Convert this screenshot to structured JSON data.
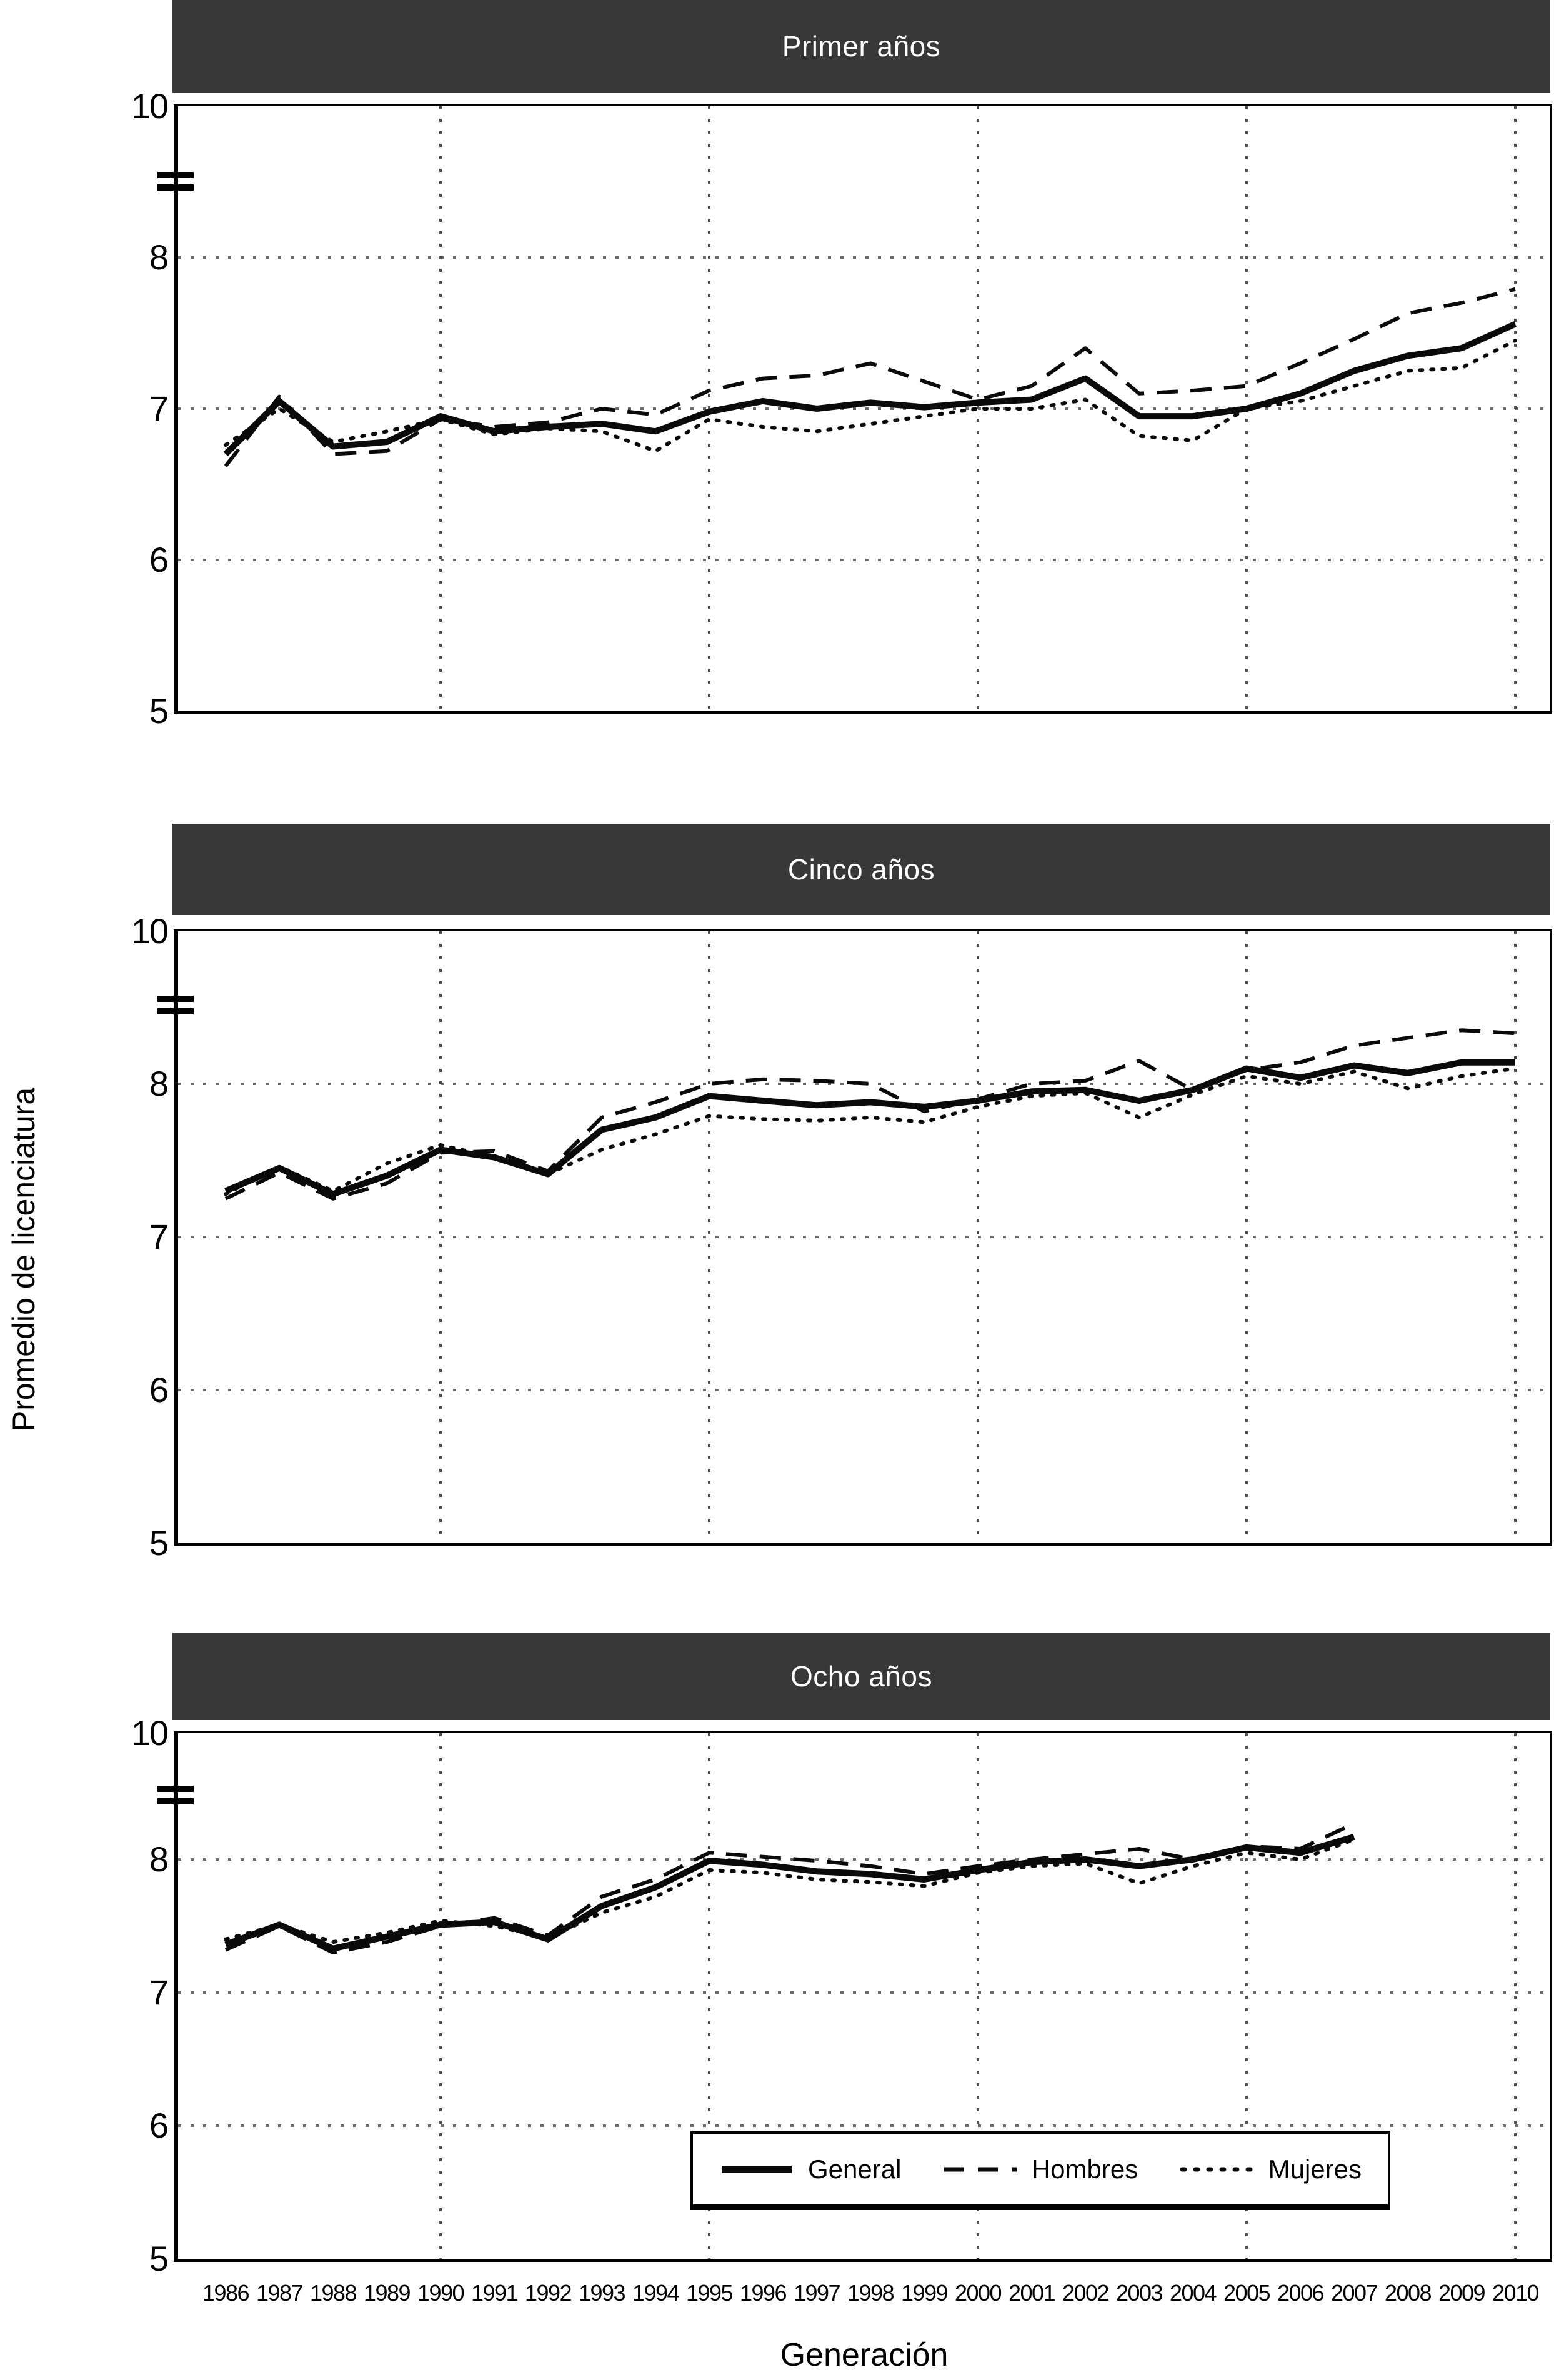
{
  "figure": {
    "ylabel": "Promedio de licenciatura",
    "xlabel": "Generación"
  },
  "legend": {
    "items": [
      {
        "name": "General",
        "style": "solid"
      },
      {
        "name": "Hombres",
        "style": "dashed"
      },
      {
        "name": "Mujeres",
        "style": "dotted"
      }
    ]
  },
  "axes": {
    "y_ticks": [
      "10",
      "8",
      "7",
      "6",
      "5"
    ],
    "y_axis_break_between": [
      8,
      10
    ],
    "x_years": [
      1986,
      1987,
      1988,
      1989,
      1990,
      1991,
      1992,
      1993,
      1994,
      1995,
      1996,
      1997,
      1998,
      1999,
      2000,
      2001,
      2002,
      2003,
      2004,
      2005,
      2006,
      2007,
      2008,
      2009,
      2010
    ],
    "x_gridline_years": [
      1990,
      1995,
      2000,
      2005,
      2010
    ],
    "grid": "dotted"
  },
  "colors": {
    "background": "#ffffff",
    "title_bar": "#3a3738",
    "title_text": "#ffffff",
    "line": "#0a0a0a",
    "grid_horizontal": "#6a6a6a",
    "grid_vertical": "#4f4f4f"
  },
  "chart_data": [
    {
      "type": "line",
      "title": "Primer años",
      "ylabel": "Promedio de licenciatura",
      "ylim": [
        5,
        10
      ],
      "legend_position": "none",
      "x": [
        1986,
        1987,
        1988,
        1989,
        1990,
        1991,
        1992,
        1993,
        1994,
        1995,
        1996,
        1997,
        1998,
        1999,
        2000,
        2001,
        2002,
        2003,
        2004,
        2005,
        2006,
        2007,
        2008,
        2009,
        2010
      ],
      "series": [
        {
          "name": "General",
          "dash": "solid",
          "values": [
            6.7,
            7.05,
            6.75,
            6.78,
            6.95,
            6.85,
            6.88,
            6.9,
            6.85,
            6.98,
            7.05,
            7.0,
            7.04,
            7.01,
            7.04,
            7.06,
            7.2,
            6.95,
            6.95,
            7.0,
            7.1,
            7.25,
            7.35,
            7.4,
            7.56
          ]
        },
        {
          "name": "Hombres",
          "dash": "dashed",
          "values": [
            6.62,
            7.08,
            6.7,
            6.72,
            6.93,
            6.88,
            6.91,
            7.0,
            6.96,
            7.12,
            7.2,
            7.22,
            7.3,
            7.18,
            7.06,
            7.15,
            7.4,
            7.1,
            7.12,
            7.15,
            7.3,
            7.46,
            7.63,
            7.7,
            7.79
          ]
        },
        {
          "name": "Mujeres",
          "dash": "dotted",
          "values": [
            6.76,
            7.0,
            6.78,
            6.85,
            6.93,
            6.83,
            6.87,
            6.85,
            6.72,
            6.93,
            6.88,
            6.85,
            6.9,
            6.95,
            7.0,
            7.0,
            7.06,
            6.82,
            6.79,
            7.0,
            7.05,
            7.15,
            7.25,
            7.27,
            7.45
          ]
        }
      ]
    },
    {
      "type": "line",
      "title": "Cinco años",
      "ylabel": "Promedio de licenciatura",
      "ylim": [
        5,
        10
      ],
      "legend_position": "none",
      "x": [
        1986,
        1987,
        1988,
        1989,
        1990,
        1991,
        1992,
        1993,
        1994,
        1995,
        1996,
        1997,
        1998,
        1999,
        2000,
        2001,
        2002,
        2003,
        2004,
        2005,
        2006,
        2007,
        2008,
        2009,
        2010
      ],
      "series": [
        {
          "name": "General",
          "dash": "solid",
          "values": [
            7.3,
            7.45,
            7.28,
            7.4,
            7.57,
            7.52,
            7.41,
            7.7,
            7.78,
            7.92,
            7.89,
            7.86,
            7.88,
            7.85,
            7.89,
            7.95,
            7.96,
            7.89,
            7.96,
            8.1,
            8.04,
            8.12,
            8.07,
            8.14,
            8.14
          ]
        },
        {
          "name": "Hombres",
          "dash": "dashed",
          "values": [
            7.25,
            7.42,
            7.25,
            7.35,
            7.55,
            7.56,
            7.43,
            7.78,
            7.88,
            8.0,
            8.03,
            8.02,
            8.0,
            7.82,
            7.9,
            8.0,
            8.02,
            8.15,
            7.96,
            8.09,
            8.14,
            8.25,
            8.3,
            8.35,
            8.33
          ]
        },
        {
          "name": "Mujeres",
          "dash": "dotted",
          "values": [
            7.28,
            7.46,
            7.3,
            7.48,
            7.6,
            7.52,
            7.41,
            7.57,
            7.67,
            7.79,
            7.77,
            7.76,
            7.78,
            7.75,
            7.85,
            7.92,
            7.94,
            7.78,
            7.93,
            8.05,
            8.0,
            8.08,
            7.97,
            8.05,
            8.1
          ]
        }
      ]
    },
    {
      "type": "line",
      "title": "Ocho años",
      "ylabel": "Promedio de licenciatura",
      "ylim": [
        5,
        10
      ],
      "legend_position": "lower right",
      "x": [
        1986,
        1987,
        1988,
        1989,
        1990,
        1991,
        1992,
        1993,
        1994,
        1995,
        1996,
        1997,
        1998,
        1999,
        2000,
        2001,
        2002,
        2003,
        2004,
        2005,
        2006,
        2007
      ],
      "series": [
        {
          "name": "General",
          "dash": "solid",
          "values": [
            7.36,
            7.51,
            7.33,
            7.42,
            7.51,
            7.53,
            7.4,
            7.65,
            7.79,
            7.99,
            7.96,
            7.91,
            7.89,
            7.85,
            7.92,
            7.98,
            8.0,
            7.95,
            8.0,
            8.09,
            8.05,
            8.17
          ]
        },
        {
          "name": "Hombres",
          "dash": "dashed",
          "values": [
            7.32,
            7.5,
            7.3,
            7.38,
            7.5,
            7.56,
            7.43,
            7.72,
            7.85,
            8.05,
            8.02,
            7.99,
            7.95,
            7.89,
            7.95,
            8.0,
            8.04,
            8.08,
            8.0,
            8.1,
            8.08,
            8.27
          ]
        },
        {
          "name": "Mujeres",
          "dash": "dotted",
          "values": [
            7.4,
            7.51,
            7.38,
            7.45,
            7.54,
            7.5,
            7.41,
            7.6,
            7.72,
            7.92,
            7.9,
            7.85,
            7.83,
            7.8,
            7.9,
            7.95,
            7.97,
            7.82,
            7.95,
            8.05,
            8.0,
            8.15
          ]
        }
      ]
    }
  ]
}
